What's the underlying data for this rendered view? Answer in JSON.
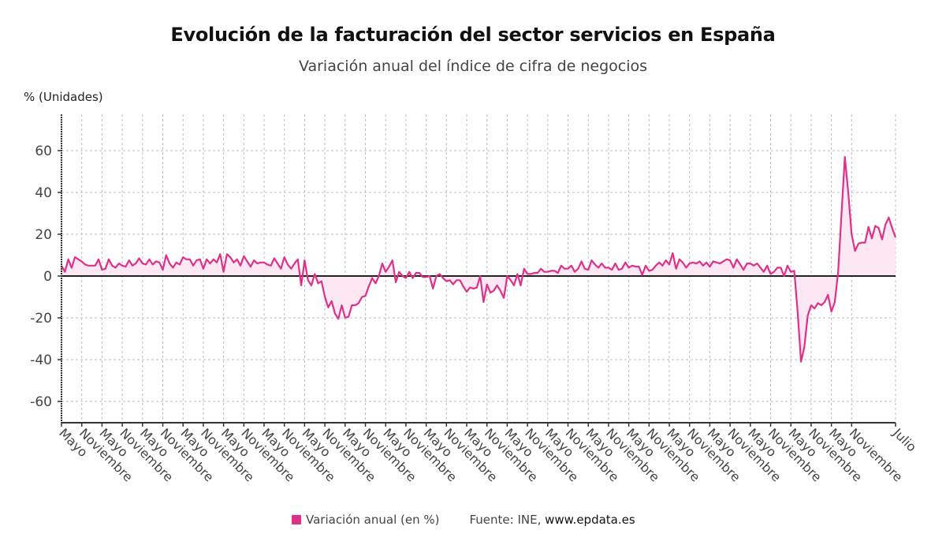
{
  "header": {
    "title": "Evolución de la facturación del sector servicios en España",
    "subtitle": "Variación anual del índice de cifra de negocios",
    "y_unit": "% (Unidades)"
  },
  "legend": {
    "series_label": "Variación anual (en %)",
    "source_prefix": "Fuente: INE, ",
    "source_site": "www.epdata.es"
  },
  "colors": {
    "line": "#e0308a",
    "fill": "#fce8f3",
    "grid": "#bdbdbd",
    "axis": "#333333"
  },
  "chart_data": {
    "type": "area",
    "title": "Evolución de la facturación del sector servicios en España",
    "subtitle": "Variación anual del índice de cifra de negocios",
    "ylabel": "% (Unidades)",
    "xlabel": "",
    "ylim": [
      -70,
      80
    ],
    "yticks": [
      -60,
      -40,
      -20,
      0,
      20,
      40,
      60
    ],
    "grid": true,
    "legend_position": "bottom",
    "xtick_labels": [
      "Mayo",
      "Noviembre",
      "Mayo",
      "Noviembre",
      "Mayo",
      "Noviembre",
      "Mayo",
      "Noviembre",
      "Mayo",
      "Noviembre",
      "Mayo",
      "Noviembre",
      "Mayo",
      "Noviembre",
      "Mayo",
      "Noviembre",
      "Mayo",
      "Noviembre",
      "Mayo",
      "Noviembre",
      "Mayo",
      "Noviembre",
      "Mayo",
      "Noviembre",
      "Mayo",
      "Noviembre",
      "Mayo",
      "Noviembre",
      "Mayo",
      "Noviembre",
      "Mayo",
      "Noviembre",
      "Mayo",
      "Noviembre",
      "Mayo",
      "Noviembre",
      "Mayo",
      "Noviembre",
      "Mayo",
      "Noviembre",
      "Julio"
    ],
    "series": [
      {
        "name": "Variación anual (en %)",
        "frequency": "monthly",
        "start": "Mayo",
        "end": "Julio",
        "values": [
          5,
          2,
          8,
          4,
          9,
          8,
          7,
          5.5,
          5,
          5,
          5,
          8,
          3,
          3.5,
          8,
          5,
          4,
          6,
          5,
          4.5,
          7.5,
          5,
          6,
          8.5,
          6,
          5.5,
          8,
          5.5,
          7,
          6.5,
          3,
          10,
          6,
          4,
          6.5,
          5.5,
          9,
          8,
          8,
          5,
          7.5,
          8,
          3.5,
          8,
          6,
          8,
          6.5,
          10.5,
          2,
          10.5,
          9,
          6.5,
          8,
          5,
          9.5,
          7,
          4.5,
          7.5,
          6,
          6.5,
          6.5,
          5.5,
          5,
          8.5,
          6,
          3.5,
          9,
          5.5,
          3.5,
          6,
          8,
          -4.5,
          7.5,
          -2,
          -4.5,
          1,
          -3.5,
          -2.5,
          -10,
          -15,
          -12,
          -18,
          -20.5,
          -14,
          -20,
          -19.5,
          -14,
          -14,
          -13,
          -10,
          -9.5,
          -5,
          -1,
          -3.5,
          0,
          6,
          2,
          4.5,
          7.5,
          -3,
          2,
          0,
          -1,
          2,
          -1,
          1.5,
          1.5,
          -0.5,
          -0.5,
          0,
          -6,
          0,
          1,
          -1,
          -2.5,
          -2,
          -4,
          -2,
          -2,
          -5,
          -7.5,
          -5.5,
          -6,
          -5.5,
          0,
          -12.5,
          -4,
          -8,
          -7,
          -4.5,
          -7,
          -10.5,
          0,
          -2,
          -4.5,
          1,
          -4.5,
          3.5,
          1,
          1,
          1.5,
          1.5,
          3.5,
          2,
          2,
          2.5,
          2.5,
          1.5,
          5,
          3.5,
          3.5,
          5,
          2,
          3.5,
          7,
          3.5,
          3,
          7.5,
          5.5,
          4,
          6,
          4,
          4,
          3,
          6,
          3,
          3.5,
          6.5,
          4,
          5,
          4.5,
          4.5,
          0.5,
          5,
          2.5,
          3,
          5,
          6.5,
          5,
          7.5,
          5.5,
          11,
          3.5,
          8,
          6.5,
          4,
          6,
          6.5,
          6,
          7,
          5,
          6.5,
          4.5,
          7,
          6.5,
          6,
          7,
          8,
          7.5,
          4,
          8,
          5.5,
          3,
          6,
          6,
          5,
          6,
          4,
          2,
          5,
          1,
          2,
          4,
          4,
          0,
          5,
          2,
          2.5,
          -17,
          -41,
          -34,
          -19,
          -14,
          -15.5,
          -13,
          -14,
          -12.5,
          -9,
          -17,
          -12.5,
          2,
          30,
          57,
          40,
          20,
          12,
          15.5,
          16,
          16,
          23.5,
          18,
          24,
          23,
          17.5,
          24.5,
          28,
          23,
          18.5
        ]
      }
    ]
  }
}
